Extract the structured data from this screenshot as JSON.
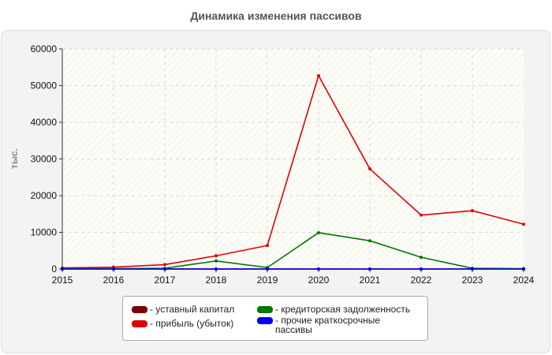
{
  "chart_data": {
    "type": "line",
    "title": "Динамика изменения пассивов",
    "ylabel": "тыс.",
    "xlabel": "",
    "x": [
      2015,
      2016,
      2017,
      2018,
      2019,
      2020,
      2021,
      2022,
      2023,
      2024
    ],
    "x_tick_labels": [
      "2015",
      "2016",
      "2017",
      "2018",
      "2019",
      "2020",
      "2021",
      "2022",
      "2023",
      "2024"
    ],
    "ylim": [
      0,
      60000
    ],
    "y_ticks": [
      0,
      10000,
      20000,
      30000,
      40000,
      50000,
      60000
    ],
    "y_tick_labels": [
      "0",
      "10000",
      "20000",
      "30000",
      "40000",
      "50000",
      "60000"
    ],
    "grid": true,
    "legend_position": "bottom-center",
    "series": [
      {
        "name": "- уставный капитал",
        "color": "#7a0000",
        "values": [
          10,
          10,
          10,
          10,
          10,
          10,
          10,
          10,
          10,
          10
        ]
      },
      {
        "name": "- прибыль (убыток)",
        "color": "#e00000",
        "values": [
          300,
          500,
          1200,
          3600,
          6400,
          52700,
          27300,
          14700,
          15900,
          12200
        ]
      },
      {
        "name": "- кредиторская задолженность",
        "color": "#007700",
        "values": [
          100,
          100,
          200,
          2200,
          400,
          9900,
          7700,
          3200,
          200,
          100
        ]
      },
      {
        "name": "- прочие краткосрочные пассивы",
        "color": "#0000ee",
        "values": [
          0,
          0,
          0,
          0,
          0,
          0,
          0,
          0,
          0,
          0
        ]
      }
    ]
  }
}
